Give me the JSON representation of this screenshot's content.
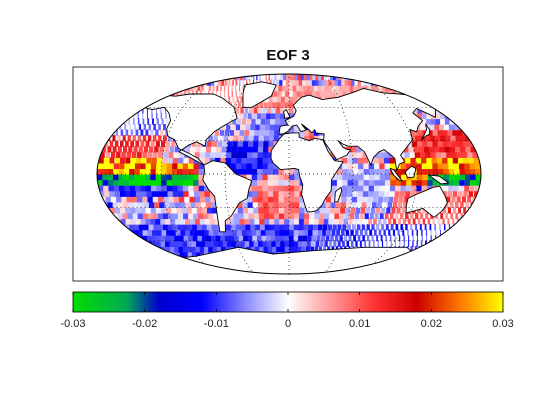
{
  "chart_data": {
    "type": "heatmap",
    "title": "EOF 3",
    "xlabel": "",
    "ylabel": "",
    "projection": "Robinson",
    "grid": true,
    "colorbar": {
      "placement": "bottom",
      "range": [
        -0.03,
        0.03
      ],
      "ticks": [
        {
          "value": -0.03,
          "label": "-0.03"
        },
        {
          "value": -0.02,
          "label": "-0.02"
        },
        {
          "value": -0.01,
          "label": "-0.01"
        },
        {
          "value": 0,
          "label": "0"
        },
        {
          "value": 0.01,
          "label": "0.01"
        },
        {
          "value": 0.02,
          "label": "0.02"
        },
        {
          "value": 0.03,
          "label": "0.03"
        }
      ],
      "colormap_stops": [
        {
          "value": -0.03,
          "color": "#00dd00"
        },
        {
          "value": -0.0225,
          "color": "#00aa55"
        },
        {
          "value": -0.018,
          "color": "#0000cc"
        },
        {
          "value": -0.012,
          "color": "#0000ff"
        },
        {
          "value": -0.006,
          "color": "#8888ff"
        },
        {
          "value": 0,
          "color": "#ffffff"
        },
        {
          "value": 0.006,
          "color": "#ff9999"
        },
        {
          "value": 0.012,
          "color": "#ff3333"
        },
        {
          "value": 0.018,
          "color": "#cc0000"
        },
        {
          "value": 0.024,
          "color": "#ff7700"
        },
        {
          "value": 0.03,
          "color": "#ffff00"
        }
      ]
    },
    "regions": [
      {
        "lon": [
          -180,
          -120
        ],
        "lat": [
          0,
          12
        ],
        "value": 0.028
      },
      {
        "lon": [
          -120,
          -85
        ],
        "lat": [
          0,
          10
        ],
        "value": 0.022
      },
      {
        "lon": [
          -180,
          -85
        ],
        "lat": [
          -12,
          0
        ],
        "value": -0.028
      },
      {
        "lon": [
          -170,
          -100
        ],
        "lat": [
          -24,
          -12
        ],
        "value": -0.01
      },
      {
        "lon": [
          -180,
          -120
        ],
        "lat": [
          12,
          35
        ],
        "value": 0.012
      },
      {
        "lon": [
          -180,
          -130
        ],
        "lat": [
          35,
          60
        ],
        "value": -0.008
      },
      {
        "lon": [
          -60,
          -20
        ],
        "lat": [
          0,
          30
        ],
        "value": -0.012
      },
      {
        "lon": [
          -40,
          10
        ],
        "lat": [
          30,
          55
        ],
        "value": -0.006
      },
      {
        "lon": [
          -30,
          10
        ],
        "lat": [
          -40,
          -10
        ],
        "value": 0.008
      },
      {
        "lon": [
          50,
          90
        ],
        "lat": [
          -25,
          5
        ],
        "value": -0.005
      },
      {
        "lon": [
          95,
          130
        ],
        "lat": [
          -10,
          12
        ],
        "value": 0.024
      },
      {
        "lon": [
          130,
          180
        ],
        "lat": [
          0,
          12
        ],
        "value": 0.028
      },
      {
        "lon": [
          120,
          180
        ],
        "lat": [
          -12,
          0
        ],
        "value": -0.028
      },
      {
        "lon": [
          120,
          180
        ],
        "lat": [
          12,
          40
        ],
        "value": 0.012
      },
      {
        "lon": [
          100,
          180
        ],
        "lat": [
          -45,
          -15
        ],
        "value": 0.01
      },
      {
        "lon": [
          -180,
          180
        ],
        "lat": [
          -75,
          -45
        ],
        "value": -0.01
      },
      {
        "lon": [
          -180,
          180
        ],
        "lat": [
          60,
          80
        ],
        "value": 0.006
      }
    ]
  }
}
